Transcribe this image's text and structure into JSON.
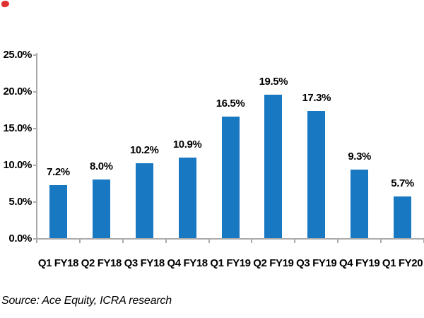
{
  "chart_data": {
    "type": "bar",
    "categories": [
      "Q1 FY18",
      "Q2 FY18",
      "Q3 FY18",
      "Q4 FY18",
      "Q1 FY19",
      "Q2 FY19",
      "Q3 FY19",
      "Q4 FY19",
      "Q1 FY20"
    ],
    "values": [
      7.2,
      8.0,
      10.2,
      10.9,
      16.5,
      19.5,
      17.3,
      9.3,
      5.7
    ],
    "data_labels": [
      "7.2%",
      "8.0%",
      "10.2%",
      "10.9%",
      "16.5%",
      "19.5%",
      "17.3%",
      "9.3%",
      "5.7%"
    ],
    "y_tick_labels": [
      "0.0%",
      "5.0%",
      "10.0%",
      "15.0%",
      "20.0%",
      "25.0%"
    ],
    "ylim": [
      0,
      25
    ],
    "y_step": 5,
    "title": "",
    "xlabel": "",
    "ylabel": "",
    "grid": false,
    "legend_position": "none",
    "colors": {
      "bar": "#1878C2",
      "axis": "#ABABAB",
      "text": "#000000"
    }
  },
  "footer": {
    "source_text": "Source: Ace Equity, ICRA research"
  },
  "decorations": {
    "corner_mark_color": "#E03131"
  }
}
